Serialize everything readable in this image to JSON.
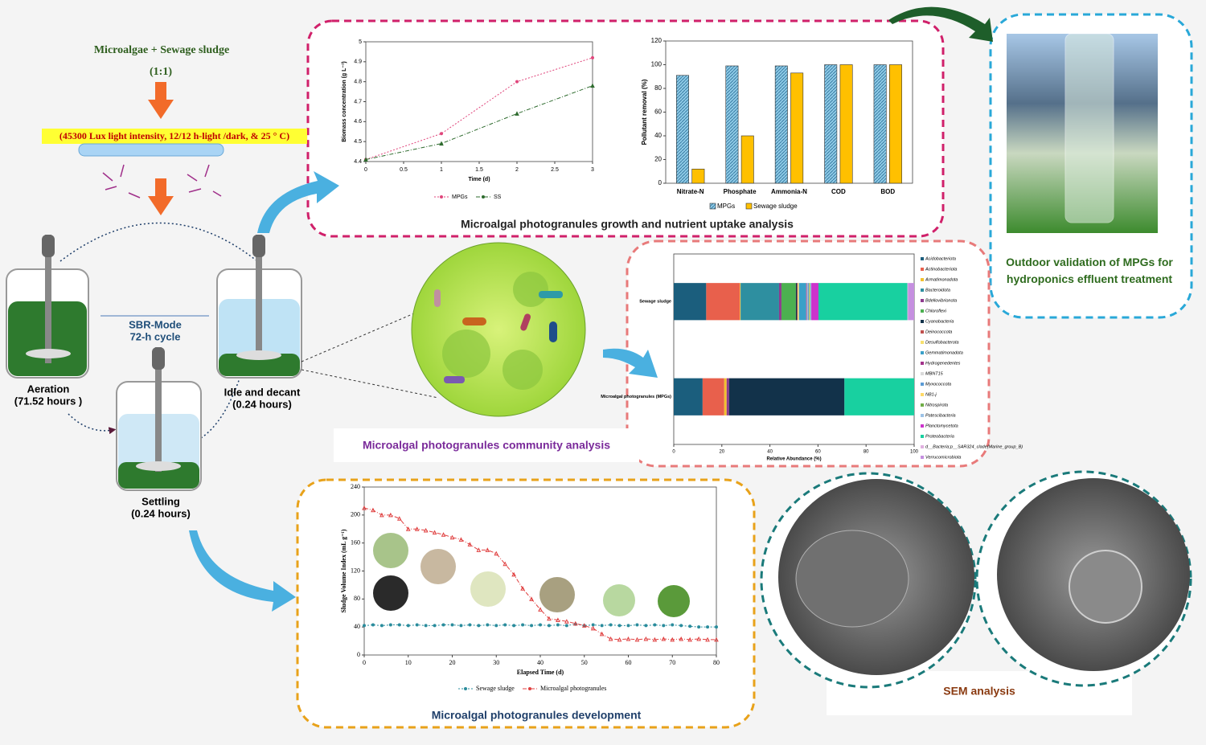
{
  "inputs": {
    "feed": "Microalgae + Sewage sludge",
    "ratio": "(1:1)",
    "conditions": "(45300 Lux light intensity, 12/12 h-light /dark, & 25 ° C)"
  },
  "reactor": {
    "mode": "SBR-Mode",
    "cycle": "72-h cycle",
    "stages": [
      {
        "name": "Aeration",
        "duration": "(71.52 hours )"
      },
      {
        "name": "Settling",
        "duration": "(0.24 hours)"
      },
      {
        "name": "Idle and decant",
        "duration": "(0.24 hours)"
      }
    ]
  },
  "growth_panel": {
    "title": "Microalgal photogranules growth and nutrient uptake analysis",
    "biomass_chart": {
      "type": "line",
      "x_label": "Time (d)",
      "y_label": "Biomass concentration (g L⁻¹)",
      "x": [
        0,
        1,
        2,
        3
      ],
      "series": [
        {
          "name": "MPGs",
          "color": "#e0457b",
          "values": [
            4.41,
            4.54,
            4.8,
            4.92
          ]
        },
        {
          "name": "SS",
          "color": "#2e6b2e",
          "values": [
            4.41,
            4.49,
            4.64,
            4.78
          ]
        }
      ],
      "xlim": [
        0,
        3
      ],
      "xticks": [
        0,
        0.5,
        1,
        1.5,
        2,
        2.5,
        3
      ],
      "ylim": [
        4.4,
        5
      ],
      "yticks": [
        4.4,
        4.5,
        4.6,
        4.7,
        4.8,
        4.9,
        5
      ]
    },
    "removal_chart": {
      "type": "bar",
      "y_label": "Pollutant removal (%)",
      "categories": [
        "Nitrate-N",
        "Phosphate",
        "Ammonia-N",
        "COD",
        "BOD"
      ],
      "series": [
        {
          "name": "MPGs",
          "color": "#8ecae6",
          "values": [
            91,
            99,
            99,
            100,
            100
          ]
        },
        {
          "name": "Sewage sludge",
          "color": "#ffc000",
          "values": [
            12,
            40,
            93,
            100,
            100
          ]
        }
      ],
      "ylim": [
        0,
        120
      ],
      "yticks": [
        0,
        20,
        40,
        60,
        80,
        100,
        120
      ]
    }
  },
  "community_panel": {
    "title": "Microalgal photogranules community analysis",
    "chart": {
      "type": "stacked-bar",
      "x_label": "Relative Abundance (%)",
      "categories": [
        "Sewage sludge",
        "Microalgal photogranules (MPGs)"
      ],
      "xlim": [
        0,
        100
      ],
      "xticks": [
        0,
        20,
        40,
        60,
        80,
        100
      ],
      "series": [
        {
          "name": "Acidobacteriota",
          "color": "#1b5e7d",
          "values": [
            13.5,
            12
          ]
        },
        {
          "name": "Actinobacteriota",
          "color": "#e8604c",
          "values": [
            14,
            9
          ]
        },
        {
          "name": "Armatimonadota",
          "color": "#f2c12e",
          "values": [
            0.3,
            1
          ]
        },
        {
          "name": "Bacteroidota",
          "color": "#2e8fa0",
          "values": [
            16,
            0
          ]
        },
        {
          "name": "Bdellovibrionota",
          "color": "#8e3a8e",
          "values": [
            1,
            1
          ]
        },
        {
          "name": "Chloroflexi",
          "color": "#4cb050",
          "values": [
            6,
            0
          ]
        },
        {
          "name": "Cyanobacteria",
          "color": "#12324a",
          "values": [
            0.5,
            48
          ]
        },
        {
          "name": "Deinococcota",
          "color": "#c0504d",
          "values": [
            0.3,
            0
          ]
        },
        {
          "name": "Desulfobacterota",
          "color": "#f7e06e",
          "values": [
            0.5,
            0
          ]
        },
        {
          "name": "Gemmatimonadota",
          "color": "#3aa0c8",
          "values": [
            3,
            0
          ]
        },
        {
          "name": "Hydrogenedentes",
          "color": "#a2318a",
          "values": [
            0.3,
            0
          ]
        },
        {
          "name": "MBNT15",
          "color": "#d9d9d9",
          "values": [
            0.3,
            0
          ]
        },
        {
          "name": "Myxococcota",
          "color": "#5b9bd5",
          "values": [
            0.5,
            0
          ]
        },
        {
          "name": "NB1-j",
          "color": "#ffd966",
          "values": [
            0.2,
            0
          ]
        },
        {
          "name": "Nitrospirota",
          "color": "#70ad47",
          "values": [
            0.3,
            0
          ]
        },
        {
          "name": "Patescibacteria",
          "color": "#9dc3e6",
          "values": [
            0.5,
            0
          ]
        },
        {
          "name": "Planctomycetota",
          "color": "#cc33cc",
          "values": [
            3,
            0
          ]
        },
        {
          "name": "Proteobacteria",
          "color": "#18d0a0",
          "values": [
            37,
            29
          ]
        },
        {
          "name": "d__Bacteria;p__SAR324_clade(Marine_group_B)",
          "color": "#e0b0e0",
          "values": [
            0.3,
            0
          ]
        },
        {
          "name": "Verrucomicrobiota",
          "color": "#c58fe0",
          "values": [
            2.5,
            0
          ]
        }
      ]
    }
  },
  "outdoor_panel": {
    "title": "Outdoor validation of MPGs for hydroponics effluent treatment"
  },
  "development_panel": {
    "title": "Microalgal photogranules development",
    "chart": {
      "type": "line",
      "x_label": "Elapsed Time (d)",
      "y_label": "Sludge Volume Index  (mL g⁻¹)",
      "x": [
        0,
        2,
        4,
        6,
        8,
        10,
        12,
        14,
        16,
        18,
        20,
        22,
        24,
        26,
        28,
        30,
        32,
        34,
        36,
        38,
        40,
        42,
        44,
        46,
        48,
        50,
        52,
        54,
        56,
        58,
        60,
        62,
        64,
        66,
        68,
        70,
        72,
        74,
        76,
        78,
        80
      ],
      "series": [
        {
          "name": "Sewage sludge",
          "color": "#2a8c9c",
          "values": [
            42,
            43,
            42,
            43,
            43,
            42,
            43,
            42,
            42,
            43,
            43,
            42,
            43,
            42,
            43,
            42,
            43,
            42,
            43,
            42,
            43,
            42,
            43,
            42,
            44,
            42,
            43,
            42,
            43,
            42,
            42,
            43,
            42,
            43,
            42,
            43,
            42,
            41,
            40,
            40,
            40
          ]
        },
        {
          "name": "Microalgal photogranules",
          "color": "#e04040",
          "values": [
            210,
            207,
            200,
            200,
            195,
            180,
            180,
            178,
            175,
            172,
            168,
            165,
            158,
            150,
            150,
            145,
            130,
            115,
            95,
            80,
            65,
            52,
            50,
            48,
            45,
            42,
            38,
            30,
            23,
            22,
            23,
            22,
            23,
            22,
            23,
            22,
            23,
            22,
            23,
            22,
            22
          ]
        }
      ],
      "xlim": [
        0,
        80
      ],
      "xticks": [
        0,
        10,
        20,
        30,
        40,
        50,
        60,
        70,
        80
      ],
      "ylim": [
        0,
        240
      ],
      "yticks": [
        0,
        40,
        80,
        120,
        160,
        200,
        240
      ]
    }
  },
  "sem_panel": {
    "title": "SEM analysis"
  }
}
